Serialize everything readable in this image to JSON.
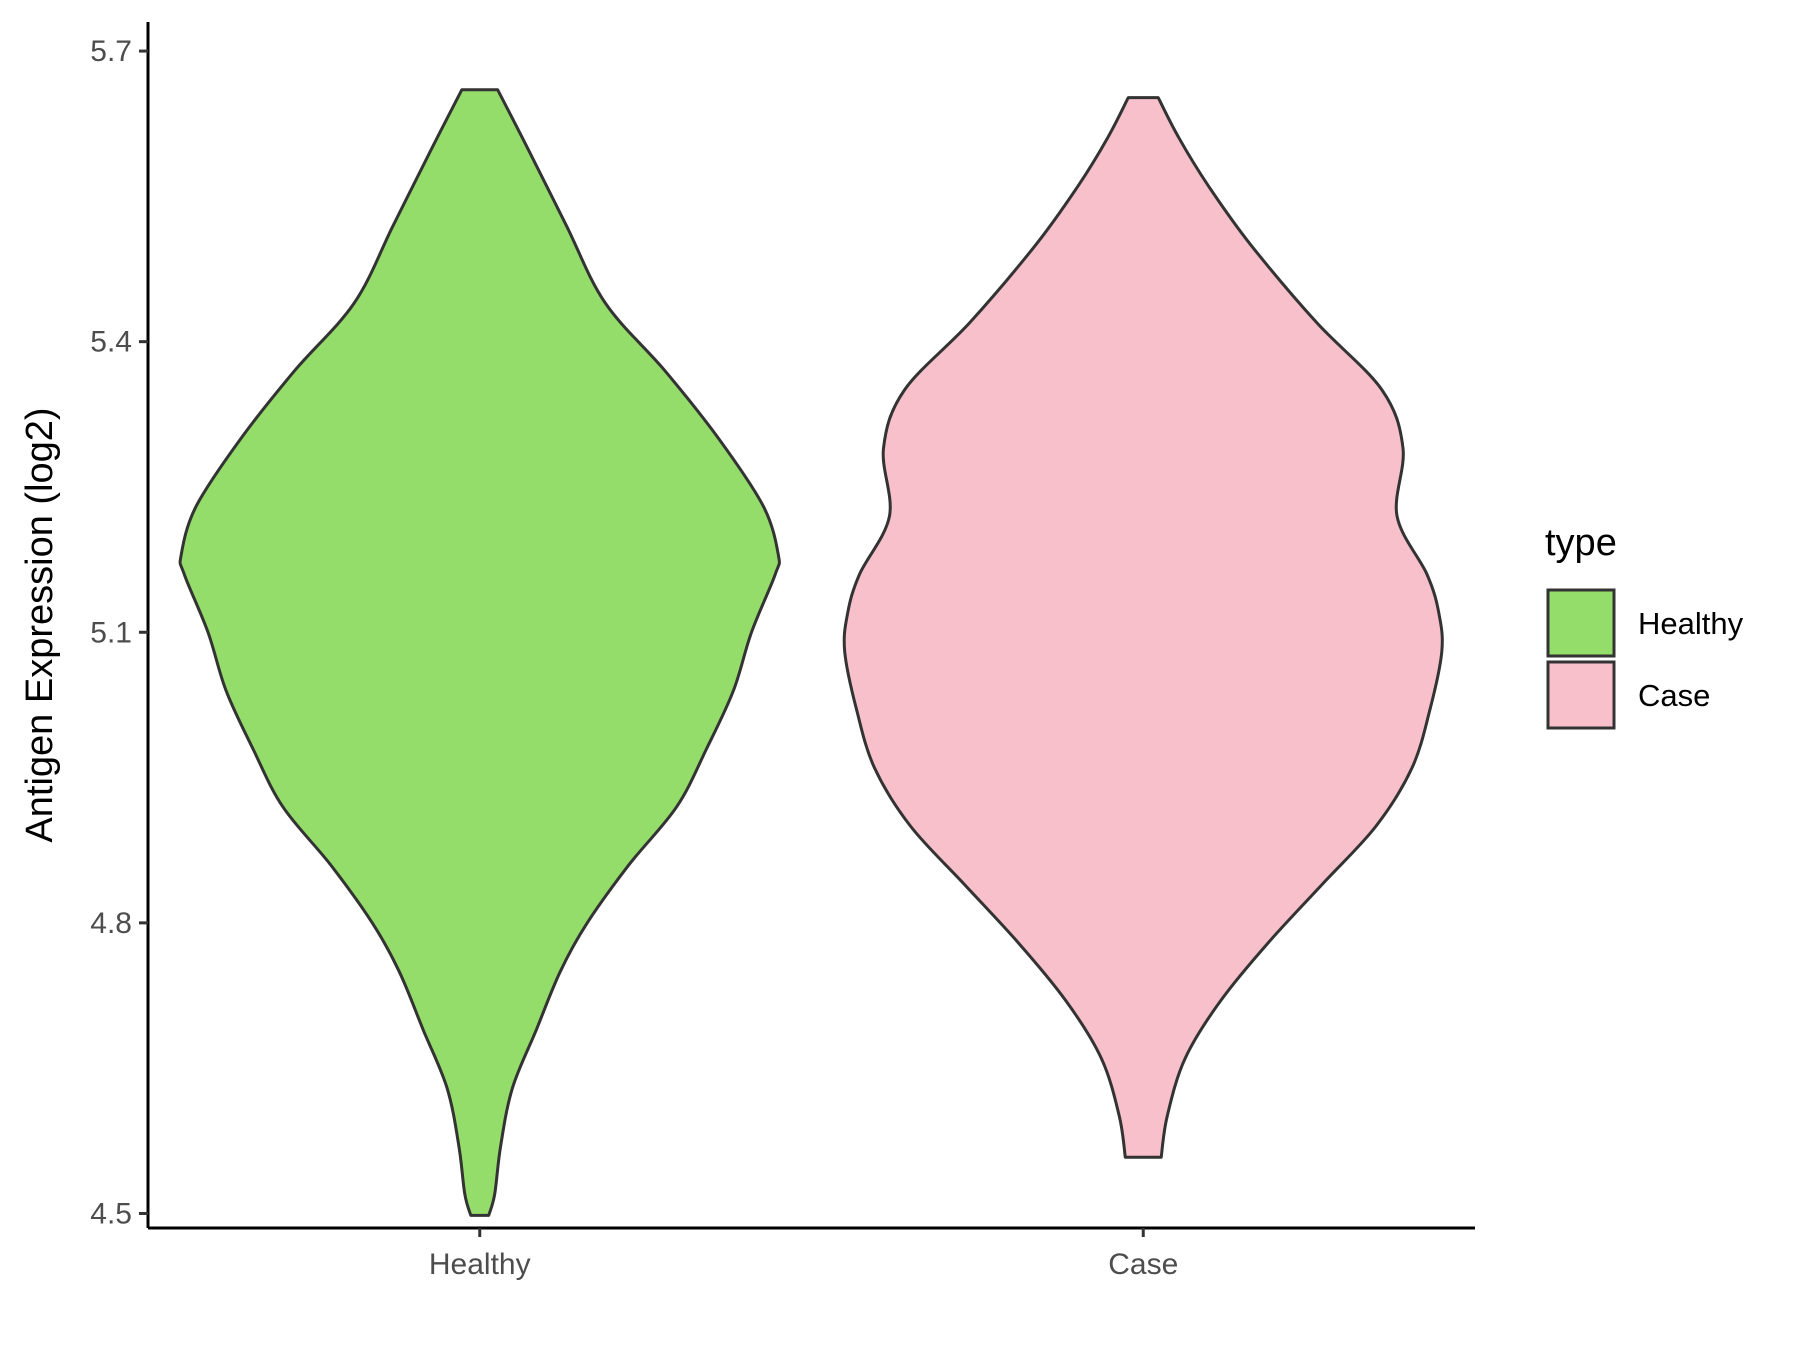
{
  "chart_data": {
    "type": "violin",
    "ylabel": "Antigen Expression (log2)",
    "xlabel": "",
    "categories": [
      "Healthy",
      "Case"
    ],
    "ylim": [
      4.485,
      5.73
    ],
    "yticks": [
      "4.5",
      "4.8",
      "5.1",
      "5.4",
      "5.7"
    ],
    "ytick_values": [
      4.5,
      4.8,
      5.1,
      5.4,
      5.7
    ],
    "grid": false,
    "legend": {
      "title": "type",
      "position": "right",
      "entries": [
        "Healthy",
        "Case"
      ]
    },
    "series": [
      {
        "name": "Healthy",
        "color": "#95dd6a",
        "min": 4.498,
        "max": 5.66,
        "density_profile": [
          [
            4.498,
            0.03
          ],
          [
            4.52,
            0.05
          ],
          [
            4.57,
            0.07
          ],
          [
            4.63,
            0.11
          ],
          [
            4.69,
            0.19
          ],
          [
            4.75,
            0.27
          ],
          [
            4.8,
            0.36
          ],
          [
            4.86,
            0.5
          ],
          [
            4.92,
            0.66
          ],
          [
            4.98,
            0.76
          ],
          [
            5.04,
            0.85
          ],
          [
            5.1,
            0.91
          ],
          [
            5.16,
            0.99
          ],
          [
            5.18,
            1.0
          ],
          [
            5.23,
            0.95
          ],
          [
            5.3,
            0.8
          ],
          [
            5.37,
            0.62
          ],
          [
            5.44,
            0.42
          ],
          [
            5.52,
            0.29
          ],
          [
            5.6,
            0.16
          ],
          [
            5.66,
            0.06
          ]
        ]
      },
      {
        "name": "Case",
        "color": "#f7c0cb",
        "min": 4.558,
        "max": 5.652,
        "density_profile": [
          [
            4.558,
            0.06
          ],
          [
            4.6,
            0.08
          ],
          [
            4.66,
            0.14
          ],
          [
            4.72,
            0.26
          ],
          [
            4.78,
            0.42
          ],
          [
            4.84,
            0.6
          ],
          [
            4.9,
            0.78
          ],
          [
            4.96,
            0.9
          ],
          [
            5.02,
            0.96
          ],
          [
            5.08,
            1.0
          ],
          [
            5.12,
            0.99
          ],
          [
            5.16,
            0.95
          ],
          [
            5.22,
            0.85
          ],
          [
            5.29,
            0.87
          ],
          [
            5.35,
            0.8
          ],
          [
            5.42,
            0.58
          ],
          [
            5.5,
            0.36
          ],
          [
            5.56,
            0.22
          ],
          [
            5.61,
            0.12
          ],
          [
            5.652,
            0.05
          ]
        ]
      }
    ]
  }
}
